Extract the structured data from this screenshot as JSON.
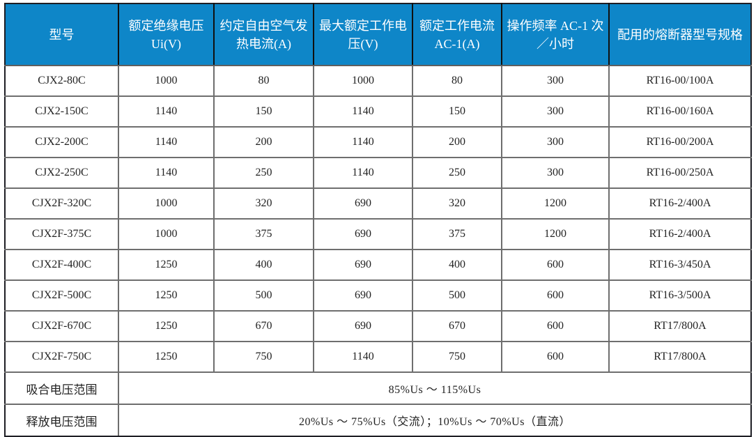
{
  "colors": {
    "header_bg": "#0E86C8",
    "header_text": "#FFFFFF",
    "body_text": "#222222",
    "grid_inner": "#6E6E6E",
    "border_outer": "#1E1E24"
  },
  "table": {
    "columns": [
      "型号",
      "额定绝缘电压 Ui(V)",
      "约定自由空气发热电流(A)",
      "最大额定工作电压(V)",
      "额定工作电流 AC-1(A)",
      "操作频率 AC-1 次／小时",
      "配用的熔断器型号规格"
    ],
    "rows": [
      [
        "CJX2-80C",
        "1000",
        "80",
        "1000",
        "80",
        "300",
        "RT16-00/100A"
      ],
      [
        "CJX2-150C",
        "1140",
        "150",
        "1140",
        "150",
        "300",
        "RT16-00/160A"
      ],
      [
        "CJX2-200C",
        "1140",
        "200",
        "1140",
        "200",
        "300",
        "RT16-00/200A"
      ],
      [
        "CJX2-250C",
        "1140",
        "250",
        "1140",
        "250",
        "300",
        "RT16-00/250A"
      ],
      [
        "CJX2F-320C",
        "1000",
        "320",
        "690",
        "320",
        "1200",
        "RT16-2/400A"
      ],
      [
        "CJX2F-375C",
        "1000",
        "375",
        "690",
        "375",
        "1200",
        "RT16-2/400A"
      ],
      [
        "CJX2F-400C",
        "1250",
        "400",
        "690",
        "400",
        "600",
        "RT16-3/450A"
      ],
      [
        "CJX2F-500C",
        "1250",
        "500",
        "690",
        "500",
        "600",
        "RT16-3/500A"
      ],
      [
        "CJX2F-670C",
        "1250",
        "670",
        "690",
        "670",
        "600",
        "RT17/800A"
      ],
      [
        "CJX2F-750C",
        "1250",
        "750",
        "1140",
        "750",
        "600",
        "RT17/800A"
      ]
    ],
    "footer_rows": [
      {
        "label": "吸合电压范围",
        "value": "85%Us ～ 115%Us"
      },
      {
        "label": "释放电压范围",
        "value": "20%Us ～ 75%Us（交流）；10%Us ～ 70%Us（直流）"
      }
    ]
  }
}
